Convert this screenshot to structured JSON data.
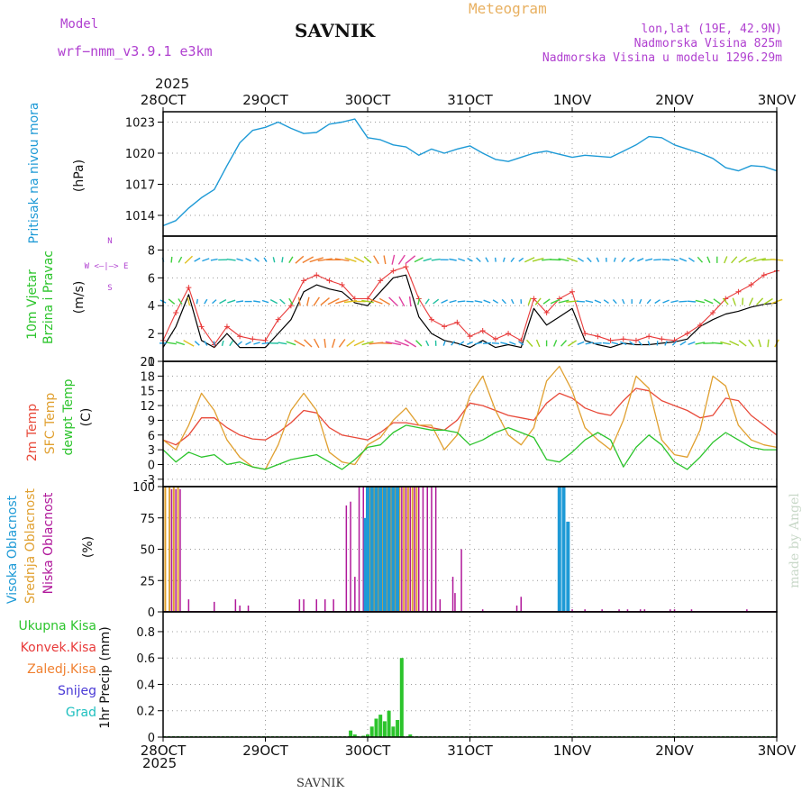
{
  "header": {
    "model_label": "Model",
    "model_name": "wrf−nmm_v3.9.1  e3km",
    "station": "SAVNIK",
    "product": "Meteogram",
    "coords": "lon,lat (19E, 42.9N)",
    "elevation": "Nadmorska Visina 825m",
    "model_elevation": "Nadmorska Visina u modelu 1296.29m",
    "year_top": "2025",
    "year_bottom": "2025",
    "footer_station": "SAVNIK",
    "credit": "made by Angel"
  },
  "colors": {
    "pressure": "#1e9ad6",
    "wind_speed": "#000000",
    "wind_gust": "#e83a3a",
    "temp_2m": "#e84a3a",
    "temp_sfc": "#e0a030",
    "dewpoint": "#2cc42c",
    "cloud_high": "#1e9ad6",
    "cloud_mid": "#e0a030",
    "cloud_low": "#b0189a",
    "precip_total": "#2cc42c",
    "precip_conv": "#e83a3a",
    "precip_frozen": "#f08030",
    "snow": "#4a3ad6",
    "hail": "#20c0c0",
    "direction_label": "#b040d0",
    "grid": "#999999"
  },
  "chart_data": [
    {
      "id": "pressure",
      "type": "line",
      "ylabel": "Pritisak na nivou mora",
      "unit": "(hPa)",
      "x_labels": [
        "28OCT",
        "29OCT",
        "30OCT",
        "31OCT",
        "1NOV",
        "2NOV",
        "3NOV"
      ],
      "xlim": [
        0,
        144
      ],
      "ylim": [
        1012,
        1024
      ],
      "yticks": [
        1014,
        1017,
        1020,
        1023
      ],
      "grid": true,
      "series": [
        {
          "name": "",
          "x": [
            0,
            3,
            6,
            9,
            12,
            15,
            18,
            21,
            24,
            27,
            30,
            33,
            36,
            39,
            42,
            45,
            48,
            51,
            54,
            57,
            60,
            63,
            66,
            69,
            72,
            75,
            78,
            81,
            84,
            87,
            90,
            93,
            96,
            99,
            102,
            105,
            108,
            111,
            114,
            117,
            120,
            123,
            126,
            129,
            132,
            135,
            138,
            141,
            144
          ],
          "values": [
            1013.0,
            1013.5,
            1014.7,
            1015.7,
            1016.5,
            1018.8,
            1021.0,
            1022.2,
            1022.5,
            1023.0,
            1022.4,
            1021.9,
            1022.0,
            1022.8,
            1023.0,
            1023.3,
            1021.5,
            1021.3,
            1020.8,
            1020.6,
            1019.8,
            1020.4,
            1020.0,
            1020.4,
            1020.7,
            1020.0,
            1019.4,
            1019.2,
            1019.6,
            1020.0,
            1020.2,
            1019.9,
            1019.6,
            1019.8,
            1019.7,
            1019.6,
            1020.2,
            1020.8,
            1021.6,
            1021.5,
            1020.8,
            1020.4,
            1020.0,
            1019.5,
            1018.6,
            1018.3,
            1018.8,
            1018.7,
            1018.3
          ]
        }
      ]
    },
    {
      "id": "wind",
      "type": "line",
      "ylabel": "10m Vjetar Brzina i Pravac",
      "unit": "(m/s)",
      "direction_legend": "W <–|–> E",
      "direction_legend_n": "N",
      "direction_legend_s": "S",
      "ylim": [
        0,
        9
      ],
      "yticks": [
        0,
        2,
        4,
        6,
        8
      ],
      "grid": true,
      "series": [
        {
          "name": "",
          "x": [
            0,
            3,
            6,
            9,
            12,
            15,
            18,
            21,
            24,
            27,
            30,
            33,
            36,
            39,
            42,
            45,
            48,
            51,
            54,
            57,
            60,
            63,
            66,
            69,
            72,
            75,
            78,
            81,
            84,
            87,
            90,
            93,
            96,
            99,
            102,
            105,
            108,
            111,
            114,
            117,
            120,
            123,
            126,
            129,
            132,
            135,
            138,
            141,
            144
          ],
          "values": [
            1.0,
            2.5,
            4.8,
            1.5,
            1.0,
            2.0,
            1.0,
            1.0,
            1.0,
            2.0,
            3.0,
            5.0,
            5.5,
            5.2,
            5.0,
            4.2,
            4.0,
            5.0,
            6.0,
            6.2,
            3.2,
            2.0,
            1.5,
            1.3,
            1.0,
            1.5,
            1.0,
            1.2,
            1.0,
            3.8,
            2.6,
            3.2,
            3.8,
            1.5,
            1.2,
            1.0,
            1.3,
            1.2,
            1.2,
            1.3,
            1.4,
            1.6,
            2.5,
            3.0,
            3.4,
            3.6,
            3.9,
            4.1,
            4.2
          ]
        },
        {
          "name": "",
          "x": [
            0,
            3,
            6,
            9,
            12,
            15,
            18,
            21,
            24,
            27,
            30,
            33,
            36,
            39,
            42,
            45,
            48,
            51,
            54,
            57,
            60,
            63,
            66,
            69,
            72,
            75,
            78,
            81,
            84,
            87,
            90,
            93,
            96,
            99,
            102,
            105,
            108,
            111,
            114,
            117,
            120,
            123,
            126,
            129,
            132,
            135,
            138,
            141,
            144
          ],
          "values": [
            1.5,
            3.5,
            5.3,
            2.5,
            1.2,
            2.5,
            1.8,
            1.6,
            1.5,
            3.0,
            4.0,
            5.8,
            6.2,
            5.8,
            5.5,
            4.5,
            4.5,
            5.8,
            6.5,
            6.8,
            4.5,
            3.0,
            2.5,
            2.8,
            1.8,
            2.2,
            1.6,
            2.0,
            1.5,
            4.5,
            3.5,
            4.5,
            5.0,
            2.0,
            1.8,
            1.5,
            1.6,
            1.5,
            1.8,
            1.6,
            1.5,
            2.0,
            2.6,
            3.5,
            4.5,
            5.0,
            5.5,
            6.2,
            6.5
          ]
        }
      ],
      "arrow_bands": [
        1.3,
        4.3,
        7.3
      ]
    },
    {
      "id": "temperature",
      "type": "line",
      "ylabel_lines": [
        "2m Temp",
        "SFC Temp",
        "dewpt Temp"
      ],
      "unit": "(C)",
      "ylim": [
        -4.5,
        21
      ],
      "yticks": [
        -3,
        0,
        3,
        6,
        9,
        12,
        15,
        18,
        21
      ],
      "grid": true,
      "series": [
        {
          "name": "2m Temp",
          "x": [
            0,
            3,
            6,
            9,
            12,
            15,
            18,
            21,
            24,
            27,
            30,
            33,
            36,
            39,
            42,
            45,
            48,
            51,
            54,
            57,
            60,
            63,
            66,
            69,
            72,
            75,
            78,
            81,
            84,
            87,
            90,
            93,
            96,
            99,
            102,
            105,
            108,
            111,
            114,
            117,
            120,
            123,
            126,
            129,
            132,
            135,
            138,
            141,
            144
          ],
          "values": [
            5,
            4,
            6,
            9.5,
            9.5,
            7.5,
            6,
            5.2,
            5,
            6.5,
            8.5,
            11,
            10.5,
            7.5,
            6,
            5.5,
            5,
            6.5,
            8.5,
            8.5,
            8,
            7.5,
            7,
            9,
            12.5,
            12,
            11,
            10,
            9.5,
            9,
            12.5,
            14.5,
            13.5,
            11.5,
            10.5,
            10,
            13,
            15.5,
            15,
            13,
            12,
            11,
            9.5,
            10,
            13.5,
            13,
            10,
            8,
            6
          ]
        },
        {
          "name": "SFC Temp",
          "x": [
            0,
            3,
            6,
            9,
            12,
            15,
            18,
            21,
            24,
            27,
            30,
            33,
            36,
            39,
            42,
            45,
            48,
            51,
            54,
            57,
            60,
            63,
            66,
            69,
            72,
            75,
            78,
            81,
            84,
            87,
            90,
            93,
            96,
            99,
            102,
            105,
            108,
            111,
            114,
            117,
            120,
            123,
            126,
            129,
            132,
            135,
            138,
            141,
            144
          ],
          "values": [
            5,
            3,
            8,
            14.5,
            11,
            5,
            1.5,
            -0.5,
            -1,
            4,
            11,
            14.5,
            11,
            2.5,
            0.5,
            0,
            4,
            5.5,
            9,
            11.5,
            8,
            8,
            3,
            6,
            14,
            18,
            11,
            6,
            4,
            7.5,
            17,
            20,
            15,
            7.5,
            5,
            3,
            9,
            18,
            15.5,
            5,
            2,
            1.5,
            7,
            18,
            16,
            8,
            5,
            4,
            3.5
          ]
        },
        {
          "name": "dewpt Temp",
          "x": [
            0,
            3,
            6,
            9,
            12,
            15,
            18,
            21,
            24,
            27,
            30,
            33,
            36,
            39,
            42,
            45,
            48,
            51,
            54,
            57,
            60,
            63,
            66,
            69,
            72,
            75,
            78,
            81,
            84,
            87,
            90,
            93,
            96,
            99,
            102,
            105,
            108,
            111,
            114,
            117,
            120,
            123,
            126,
            129,
            132,
            135,
            138,
            141,
            144
          ],
          "values": [
            3,
            0.5,
            2.5,
            1.5,
            2,
            0,
            0.5,
            -0.5,
            -1,
            0,
            1,
            1.5,
            2,
            0.5,
            -1,
            1,
            3.5,
            4,
            6.5,
            8,
            7.5,
            7,
            7,
            6.5,
            4,
            5,
            6.5,
            7.5,
            6.5,
            5.5,
            1,
            0.5,
            2.5,
            5,
            6.5,
            5,
            -0.5,
            3.5,
            6,
            4,
            0.5,
            -1,
            1.5,
            4.5,
            6.5,
            5,
            3.5,
            3,
            3
          ]
        }
      ]
    },
    {
      "id": "clouds",
      "type": "bar",
      "ylabel_lines": [
        "Visoka Oblacnost",
        "Srednja Oblacnost",
        "Niska Oblacnost"
      ],
      "unit": "(%)",
      "ylim": [
        0,
        100
      ],
      "yticks": [
        0,
        25,
        50,
        75,
        100
      ],
      "grid": true,
      "series": [
        {
          "name": "Visoka Oblacnost",
          "x": [
            47.5,
            48,
            49,
            50,
            51,
            52,
            53,
            54,
            55,
            93,
            94,
            95
          ],
          "values": [
            75,
            100,
            100,
            100,
            100,
            100,
            100,
            100,
            100,
            100,
            100,
            72
          ]
        },
        {
          "name": "Srednja Oblacnost",
          "x": [
            0.5,
            1.5,
            2.5,
            3.5,
            48.5,
            49.5,
            50.5,
            51.5,
            52.5,
            53.5,
            54.5,
            55.5,
            56.5,
            57.5,
            58.5,
            59.5
          ],
          "values": [
            100,
            100,
            100,
            100,
            100,
            100,
            100,
            100,
            100,
            100,
            100,
            100,
            100,
            100,
            100,
            100
          ]
        },
        {
          "name": "Niska Oblacnost",
          "x": [
            2,
            3,
            4,
            6,
            12,
            17,
            18,
            20,
            32,
            33,
            36,
            38,
            40,
            43,
            44,
            45,
            46,
            47,
            48,
            49,
            50,
            51,
            52,
            53,
            54,
            55,
            56,
            57,
            58,
            59,
            60,
            61,
            62,
            63,
            64,
            65,
            68,
            68.5,
            70,
            75,
            83,
            84,
            95,
            96,
            99,
            103,
            107,
            109,
            112,
            113,
            119,
            120,
            124,
            137
          ],
          "values": [
            98,
            98,
            98,
            10,
            8,
            10,
            5,
            5,
            10,
            10,
            10,
            10,
            10,
            85,
            88,
            28,
            100,
            100,
            100,
            100,
            100,
            100,
            100,
            100,
            100,
            100,
            100,
            100,
            100,
            100,
            100,
            100,
            100,
            100,
            100,
            10,
            28,
            15,
            50,
            2,
            5,
            12,
            3,
            2,
            2,
            2,
            2,
            2,
            2,
            2,
            2,
            2,
            2,
            2
          ]
        }
      ]
    },
    {
      "id": "precip",
      "type": "bar",
      "ylabel": "1hr Precip (mm)",
      "legend": [
        "Ukupna Kisa",
        "Konvek.Kisa",
        "Zaledj.Kisa",
        "Snijeg",
        "Grad"
      ],
      "ylim": [
        0,
        0.95
      ],
      "yticks": [
        0,
        0.2,
        0.4,
        0.6,
        0.8
      ],
      "grid": true,
      "series": [
        {
          "name": "Ukupna Kisa",
          "x": [
            44,
            45,
            47,
            48,
            49,
            50,
            51,
            52,
            53,
            54,
            55,
            56,
            58
          ],
          "values": [
            0.05,
            0.02,
            0.01,
            0.02,
            0.08,
            0.14,
            0.17,
            0.12,
            0.2,
            0.08,
            0.13,
            0.6,
            0.02
          ]
        }
      ]
    }
  ]
}
